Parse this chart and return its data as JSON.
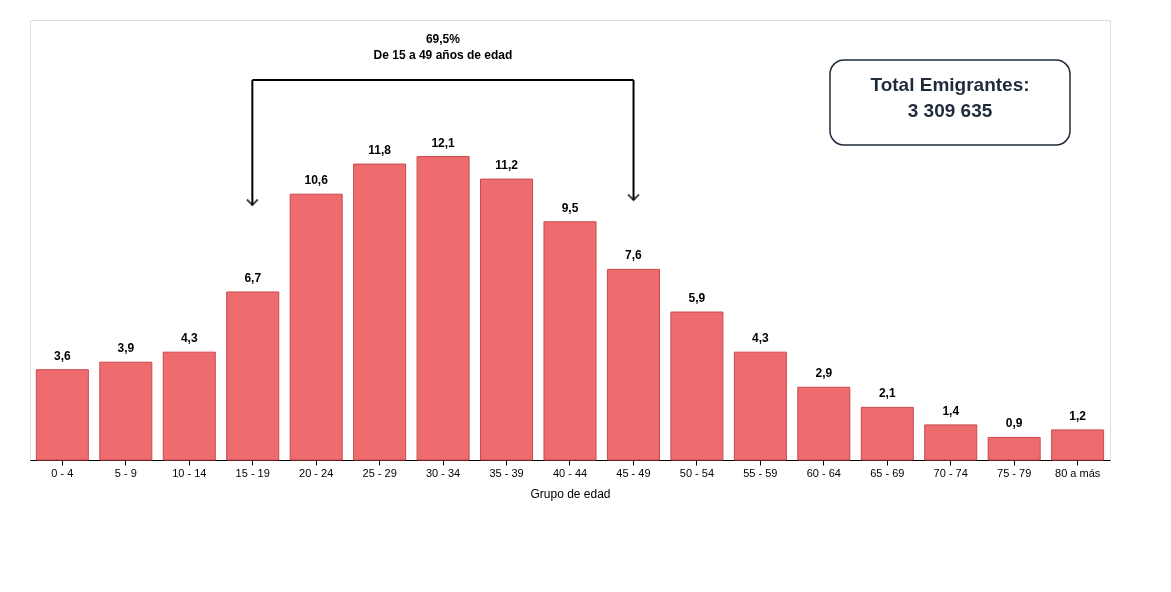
{
  "chart_data": {
    "type": "bar",
    "categories": [
      "0 - 4",
      "5 - 9",
      "10 - 14",
      "15 - 19",
      "20 - 24",
      "25 - 29",
      "30 - 34",
      "35 - 39",
      "40 - 44",
      "45 - 49",
      "50 - 54",
      "55 - 59",
      "60 - 64",
      "65 - 69",
      "70 - 74",
      "75 - 79",
      "80 a más"
    ],
    "values": [
      3.6,
      3.9,
      4.3,
      6.7,
      10.6,
      11.8,
      12.1,
      11.2,
      9.5,
      7.6,
      5.9,
      4.3,
      2.9,
      2.1,
      1.4,
      0.9,
      1.2
    ],
    "value_labels": [
      "3,6",
      "3,9",
      "4,3",
      "6,7",
      "10,6",
      "11,8",
      "12,1",
      "11,2",
      "9,5",
      "7,6",
      "5,9",
      "4,3",
      "2,9",
      "2,1",
      "1,4",
      "0,9",
      "1,2"
    ],
    "color": "#ee6b6e",
    "xlabel": "Grupo de edad",
    "annotations": [
      "69,5%",
      "De 15 a 49 años de edad",
      "Total Emigrantes:",
      "3 309 635"
    ],
    "grid": false
  }
}
